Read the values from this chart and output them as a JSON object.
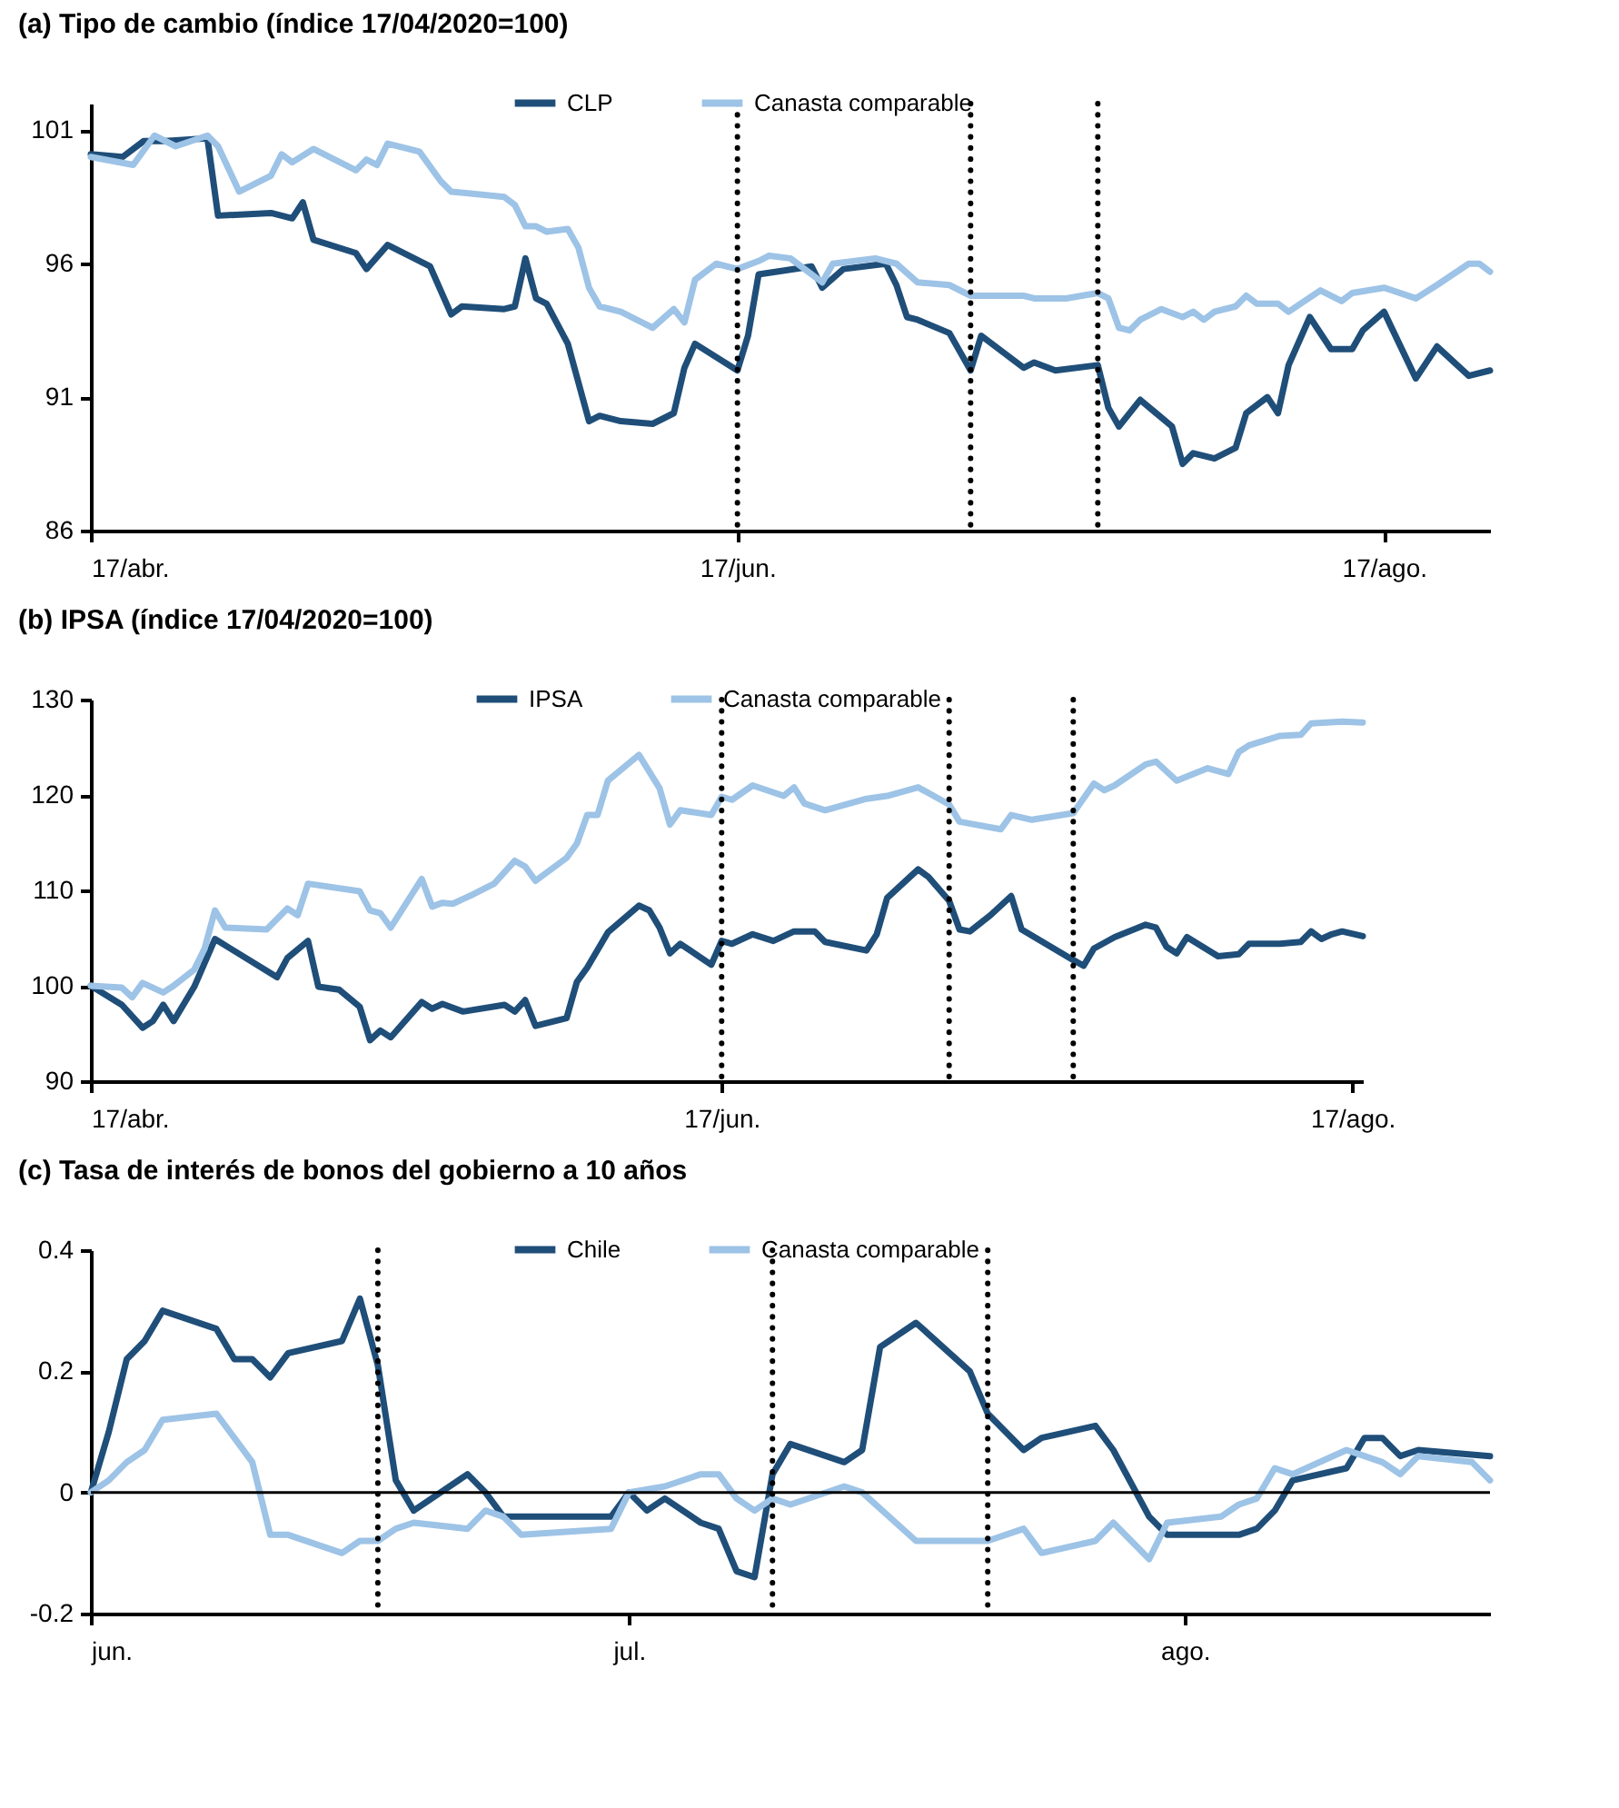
{
  "chart_data": [
    {
      "type": "line",
      "title": "(a) Tipo de cambio (índice 17/04/2020=100)",
      "xlim": [
        "--04-17",
        "--08-27"
      ],
      "xticks": [
        {
          "value": "--04-17",
          "label": "17/abr."
        },
        {
          "value": "--06-17",
          "label": "17/jun."
        },
        {
          "value": "--08-17",
          "label": "17/ago."
        }
      ],
      "ylim": [
        86,
        102
      ],
      "yticks": [
        86,
        91,
        96,
        101
      ],
      "legend": "top",
      "line_style": "solid",
      "ref_lines": [
        {
          "axis": "x",
          "value": "--06-17",
          "color": "#000000",
          "line_style": "dotted"
        },
        {
          "axis": "x",
          "value": "--07-09",
          "color": "#000000",
          "line_style": "dotted"
        },
        {
          "axis": "x",
          "value": "--07-21",
          "color": "#000000",
          "line_style": "dotted"
        }
      ],
      "series": [
        {
          "name": "CLP",
          "color": "#1f4e79",
          "x": [
            "--04-17",
            "--04-20",
            "--04-22",
            "--04-24",
            "--04-28",
            "--04-29",
            "--05-04",
            "--05-06",
            "--05-07",
            "--05-08",
            "--05-12",
            "--05-13",
            "--05-15",
            "--05-19",
            "--05-21",
            "--05-22",
            "--05-26",
            "--05-27",
            "--05-28",
            "--05-29",
            "--05-30",
            "--06-01",
            "--06-03",
            "--06-04",
            "--06-06",
            "--06-09",
            "--06-11",
            "--06-12",
            "--06-13",
            "--06-17",
            "--06-18",
            "--06-19",
            "--06-24",
            "--06-25",
            "--06-27",
            "--07-01",
            "--07-02",
            "--07-03",
            "--07-04",
            "--07-07",
            "--07-09",
            "--07-10",
            "--07-14",
            "--07-15",
            "--07-17",
            "--07-21",
            "--07-22",
            "--07-23",
            "--07-25",
            "--07-28",
            "--07-29",
            "--07-30",
            "--08-01",
            "--08-03",
            "--08-04",
            "--08-06",
            "--08-07",
            "--08-08",
            "--08-10",
            "--08-12",
            "--08-14",
            "--08-15",
            "--08-17",
            "--08-20",
            "--08-22",
            "--08-25",
            "--08-27"
          ],
          "values": [
            100.1,
            100.0,
            100.6,
            100.6,
            100.7,
            97.8,
            97.9,
            97.7,
            98.3,
            96.9,
            96.4,
            95.8,
            96.7,
            95.9,
            94.1,
            94.4,
            94.3,
            94.4,
            96.2,
            94.7,
            94.5,
            93.0,
            90.1,
            90.3,
            90.1,
            90.0,
            90.4,
            92.1,
            93.0,
            92.0,
            93.3,
            95.6,
            95.9,
            95.1,
            95.8,
            96.0,
            95.2,
            94.0,
            93.9,
            93.4,
            92.0,
            93.3,
            92.1,
            92.3,
            92.0,
            92.2,
            90.6,
            89.9,
            90.9,
            89.9,
            88.5,
            88.9,
            88.7,
            89.1,
            90.4,
            91.0,
            90.4,
            92.2,
            94.0,
            92.8,
            92.8,
            93.5,
            94.2,
            91.7,
            92.9,
            91.8,
            92.0
          ]
        },
        {
          "name": "Canasta comparable",
          "color": "#9dc3e6",
          "x": [
            "--04-17",
            "--04-21",
            "--04-23",
            "--04-25",
            "--04-28",
            "--04-29",
            "--05-01",
            "--05-04",
            "--05-05",
            "--05-06",
            "--05-08",
            "--05-12",
            "--05-13",
            "--05-14",
            "--05-15",
            "--05-18",
            "--05-20",
            "--05-21",
            "--05-26",
            "--05-27",
            "--05-28",
            "--05-29",
            "--05-30",
            "--06-01",
            "--06-02",
            "--06-03",
            "--06-04",
            "--06-06",
            "--06-08",
            "--06-09",
            "--06-11",
            "--06-12",
            "--06-13",
            "--06-15",
            "--06-17",
            "--06-19",
            "--06-20",
            "--06-22",
            "--06-25",
            "--06-26",
            "--06-30",
            "--07-02",
            "--07-04",
            "--07-07",
            "--07-09",
            "--07-14",
            "--07-15",
            "--07-18",
            "--07-21",
            "--07-22",
            "--07-23",
            "--07-24",
            "--07-25",
            "--07-27",
            "--07-29",
            "--07-30",
            "--07-31",
            "--08-01",
            "--08-03",
            "--08-04",
            "--08-05",
            "--08-07",
            "--08-08",
            "--08-11",
            "--08-13",
            "--08-14",
            "--08-17",
            "--08-20",
            "--08-22",
            "--08-25",
            "--08-26",
            "--08-27"
          ],
          "values": [
            100.0,
            99.7,
            100.8,
            100.4,
            100.8,
            100.4,
            98.7,
            99.3,
            100.1,
            99.8,
            100.3,
            99.5,
            99.9,
            99.7,
            100.5,
            100.2,
            99.1,
            98.7,
            98.5,
            98.2,
            97.4,
            97.4,
            97.2,
            97.3,
            96.6,
            95.1,
            94.4,
            94.2,
            93.8,
            93.6,
            94.3,
            93.8,
            95.4,
            96.0,
            95.8,
            96.1,
            96.3,
            96.2,
            95.3,
            96.0,
            96.2,
            96.0,
            95.3,
            95.2,
            94.8,
            94.8,
            94.7,
            94.7,
            94.9,
            94.7,
            93.6,
            93.5,
            93.9,
            94.3,
            94.0,
            94.2,
            93.9,
            94.2,
            94.4,
            94.8,
            94.5,
            94.5,
            94.2,
            95.0,
            94.6,
            94.9,
            95.1,
            94.7,
            95.2,
            96.0,
            96.0,
            95.7
          ]
        }
      ]
    },
    {
      "type": "line",
      "title": "(b) IPSA (índice 17/04/2020=100)",
      "xlim": [
        "--04-17",
        "--08-18"
      ],
      "xticks": [
        {
          "value": "--04-17",
          "label": "17/abr."
        },
        {
          "value": "--06-17",
          "label": "17/jun."
        },
        {
          "value": "--08-17",
          "label": "17/ago."
        }
      ],
      "ylim": [
        90,
        130
      ],
      "yticks": [
        90,
        100,
        110,
        120,
        130
      ],
      "legend": "top",
      "line_style": "solid",
      "ref_lines": [
        {
          "axis": "x",
          "value": "--06-17",
          "color": "#000000",
          "line_style": "dotted"
        },
        {
          "axis": "x",
          "value": "--07-09",
          "color": "#000000",
          "line_style": "dotted"
        },
        {
          "axis": "x",
          "value": "--07-21",
          "color": "#000000",
          "line_style": "dotted"
        }
      ],
      "series": [
        {
          "name": "IPSA",
          "color": "#1f4e79",
          "x": [
            "--04-17",
            "--04-20",
            "--04-22",
            "--04-23",
            "--04-24",
            "--04-25",
            "--04-27",
            "--04-29",
            "--05-05",
            "--05-06",
            "--05-08",
            "--05-09",
            "--05-11",
            "--05-13",
            "--05-14",
            "--05-15",
            "--05-16",
            "--05-19",
            "--05-20",
            "--05-21",
            "--05-23",
            "--05-27",
            "--05-28",
            "--05-29",
            "--05-30",
            "--06-02",
            "--06-03",
            "--06-04",
            "--06-06",
            "--06-09",
            "--06-10",
            "--06-11",
            "--06-12",
            "--06-13",
            "--06-16",
            "--06-17",
            "--06-18",
            "--06-20",
            "--06-22",
            "--06-24",
            "--06-26",
            "--06-27",
            "--07-01",
            "--07-02",
            "--07-03",
            "--07-06",
            "--07-07",
            "--07-09",
            "--07-10",
            "--07-11",
            "--07-13",
            "--07-15",
            "--07-16",
            "--07-21",
            "--07-22",
            "--07-23",
            "--07-25",
            "--07-28",
            "--07-29",
            "--07-30",
            "--07-31",
            "--08-01",
            "--08-04",
            "--08-06",
            "--08-07",
            "--08-10",
            "--08-12",
            "--08-13",
            "--08-14",
            "--08-15",
            "--08-16",
            "--08-18"
          ],
          "values": [
            100.0,
            98.0,
            95.6,
            96.3,
            98.0,
            96.3,
            99.9,
            104.9,
            100.9,
            102.9,
            104.7,
            99.9,
            99.6,
            97.8,
            94.3,
            95.3,
            94.6,
            98.3,
            97.6,
            98.1,
            97.3,
            98.0,
            97.3,
            98.5,
            95.8,
            96.6,
            100.4,
            101.9,
            105.6,
            108.4,
            107.9,
            106.1,
            103.4,
            104.4,
            102.2,
            104.7,
            104.4,
            105.4,
            104.7,
            105.7,
            105.7,
            104.6,
            103.7,
            105.4,
            109.2,
            112.2,
            111.4,
            108.9,
            105.9,
            105.7,
            107.4,
            109.4,
            105.9,
            102.7,
            102.1,
            103.9,
            105.1,
            106.4,
            106.1,
            104.1,
            103.4,
            105.1,
            103.1,
            103.3,
            104.4,
            104.4,
            104.6,
            105.7,
            104.9,
            105.4,
            105.7,
            105.2
          ]
        },
        {
          "name": "Canasta comparable",
          "color": "#9dc3e6",
          "x": [
            "--04-17",
            "--04-20",
            "--04-21",
            "--04-22",
            "--04-24",
            "--04-25",
            "--04-27",
            "--04-28",
            "--04-29",
            "--04-30",
            "--05-04",
            "--05-06",
            "--05-07",
            "--05-08",
            "--05-13",
            "--05-14",
            "--05-15",
            "--05-16",
            "--05-19",
            "--05-20",
            "--05-21",
            "--05-22",
            "--05-24",
            "--05-26",
            "--05-28",
            "--05-29",
            "--05-30",
            "--06-02",
            "--06-03",
            "--06-04",
            "--06-05",
            "--06-06",
            "--06-09",
            "--06-11",
            "--06-12",
            "--06-13",
            "--06-16",
            "--06-17",
            "--06-18",
            "--06-20",
            "--06-23",
            "--06-24",
            "--06-25",
            "--06-27",
            "--07-01",
            "--07-03",
            "--07-06",
            "--07-09",
            "--07-10",
            "--07-14",
            "--07-15",
            "--07-17",
            "--07-21",
            "--07-23",
            "--07-24",
            "--07-25",
            "--07-28",
            "--07-29",
            "--07-31",
            "--08-03",
            "--08-05",
            "--08-06",
            "--08-07",
            "--08-10",
            "--08-12",
            "--08-13",
            "--08-16",
            "--08-18"
          ],
          "values": [
            100.0,
            99.8,
            98.8,
            100.3,
            99.3,
            100.0,
            101.7,
            103.9,
            107.9,
            106.1,
            105.9,
            108.1,
            107.4,
            110.7,
            109.9,
            107.9,
            107.6,
            106.1,
            111.2,
            108.3,
            108.7,
            108.6,
            109.6,
            110.7,
            113.1,
            112.5,
            111.0,
            113.4,
            114.9,
            117.9,
            117.9,
            121.5,
            124.2,
            120.7,
            116.9,
            118.4,
            117.9,
            119.8,
            119.5,
            121.0,
            119.9,
            120.8,
            119.1,
            118.4,
            119.6,
            119.9,
            120.8,
            119.0,
            117.2,
            116.4,
            117.9,
            117.4,
            118.1,
            121.2,
            120.5,
            121.0,
            123.2,
            123.5,
            121.5,
            122.8,
            122.2,
            124.5,
            125.2,
            126.2,
            126.3,
            127.5,
            127.7,
            127.6
          ]
        }
      ]
    },
    {
      "type": "line",
      "title": "(c) Tasa de interés de bonos del gobierno a 10 años",
      "xlim": [
        "--06-01",
        "--08-18"
      ],
      "xticks": [
        {
          "value": "--06-01",
          "label": "jun."
        },
        {
          "value": "--07-01",
          "label": "jul."
        },
        {
          "value": "--08-01",
          "label": "ago."
        }
      ],
      "ylim": [
        -0.2,
        0.4
      ],
      "yticks": [
        -0.2,
        0,
        0.2,
        0.4
      ],
      "legend": "top",
      "line_style": "solid",
      "ref_lines": [
        {
          "axis": "y",
          "value": 0,
          "color": "#000000",
          "line_style": "solid"
        },
        {
          "axis": "x",
          "value": "--06-17",
          "color": "#000000",
          "line_style": "dotted"
        },
        {
          "axis": "x",
          "value": "--07-09",
          "color": "#000000",
          "line_style": "dotted"
        },
        {
          "axis": "x",
          "value": "--07-21",
          "color": "#000000",
          "line_style": "dotted"
        }
      ],
      "series": [
        {
          "name": "Chile",
          "color": "#1f4e79",
          "x": [
            "--06-01",
            "--06-02",
            "--06-03",
            "--06-04",
            "--06-05",
            "--06-08",
            "--06-09",
            "--06-10",
            "--06-11",
            "--06-12",
            "--06-15",
            "--06-16",
            "--06-17",
            "--06-18",
            "--06-19",
            "--06-22",
            "--06-23",
            "--06-24",
            "--06-25",
            "--06-26",
            "--06-30",
            "--07-01",
            "--07-02",
            "--07-03",
            "--07-05",
            "--07-06",
            "--07-07",
            "--07-08",
            "--07-09",
            "--07-10",
            "--07-13",
            "--07-14",
            "--07-15",
            "--07-17",
            "--07-20",
            "--07-21",
            "--07-23",
            "--07-24",
            "--07-27",
            "--07-28",
            "--07-30",
            "--07-31",
            "--08-03",
            "--08-04",
            "--08-05",
            "--08-06",
            "--08-07",
            "--08-10",
            "--08-11",
            "--08-12",
            "--08-13",
            "--08-14",
            "--08-18"
          ],
          "values": [
            0.0,
            0.1,
            0.22,
            0.25,
            0.3,
            0.27,
            0.22,
            0.22,
            0.19,
            0.23,
            0.25,
            0.32,
            0.21,
            0.02,
            -0.03,
            0.03,
            0.0,
            -0.04,
            -0.04,
            -0.04,
            -0.04,
            0.0,
            -0.03,
            -0.01,
            -0.05,
            -0.06,
            -0.13,
            -0.14,
            0.03,
            0.08,
            0.05,
            0.07,
            0.24,
            0.28,
            0.2,
            0.13,
            0.07,
            0.09,
            0.11,
            0.07,
            -0.04,
            -0.07,
            -0.07,
            -0.07,
            -0.06,
            -0.03,
            0.02,
            0.04,
            0.09,
            0.09,
            0.06,
            0.07,
            0.06
          ]
        },
        {
          "name": "Canasta comparable",
          "color": "#9dc3e6",
          "x": [
            "--06-01",
            "--06-02",
            "--06-03",
            "--06-04",
            "--06-05",
            "--06-08",
            "--06-09",
            "--06-10",
            "--06-11",
            "--06-12",
            "--06-15",
            "--06-16",
            "--06-17",
            "--06-18",
            "--06-19",
            "--06-22",
            "--06-23",
            "--06-24",
            "--06-25",
            "--06-30",
            "--07-01",
            "--07-03",
            "--07-05",
            "--07-06",
            "--07-07",
            "--07-08",
            "--07-09",
            "--07-10",
            "--07-13",
            "--07-14",
            "--07-17",
            "--07-21",
            "--07-23",
            "--07-24",
            "--07-27",
            "--07-28",
            "--07-30",
            "--07-31",
            "--08-03",
            "--08-04",
            "--08-05",
            "--08-06",
            "--08-07",
            "--08-10",
            "--08-11",
            "--08-12",
            "--08-13",
            "--08-14",
            "--08-17",
            "--08-18"
          ],
          "values": [
            0.0,
            0.02,
            0.05,
            0.07,
            0.12,
            0.13,
            0.09,
            0.05,
            -0.07,
            -0.07,
            -0.1,
            -0.08,
            -0.08,
            -0.06,
            -0.05,
            -0.06,
            -0.03,
            -0.04,
            -0.07,
            -0.06,
            0.0,
            0.01,
            0.03,
            0.03,
            -0.01,
            -0.03,
            -0.01,
            -0.02,
            0.01,
            0.0,
            -0.08,
            -0.08,
            -0.06,
            -0.1,
            -0.08,
            -0.05,
            -0.11,
            -0.05,
            -0.04,
            -0.02,
            -0.01,
            0.04,
            0.03,
            0.07,
            0.06,
            0.05,
            0.03,
            0.06,
            0.05,
            0.02
          ]
        }
      ]
    }
  ]
}
